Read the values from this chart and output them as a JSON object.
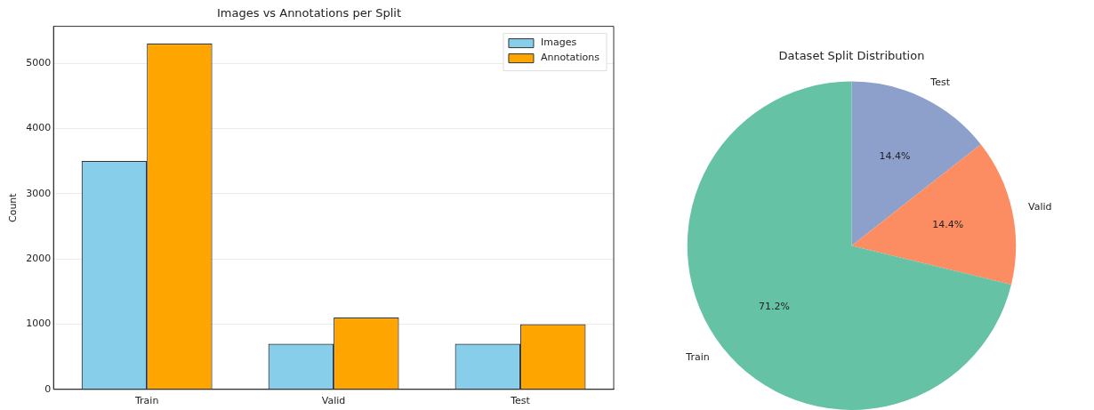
{
  "chart_data": [
    {
      "type": "bar",
      "title": "Images vs Annotations per Split",
      "ylabel": "Count",
      "categories": [
        "Train",
        "Valid",
        "Test"
      ],
      "series": [
        {
          "name": "Images",
          "color": "#87ceeb",
          "values": [
            3500,
            700,
            700
          ]
        },
        {
          "name": "Annotations",
          "color": "#ffa500",
          "values": [
            5300,
            1100,
            1000
          ]
        }
      ],
      "ylim": [
        0,
        5565
      ],
      "yticks": [
        0,
        1000,
        2000,
        3000,
        4000,
        5000
      ],
      "grid": "y",
      "legend": "top right"
    },
    {
      "type": "pie",
      "title": "Dataset Split Distribution",
      "categories": [
        "Test",
        "Valid",
        "Train"
      ],
      "values": [
        14.4,
        14.4,
        71.2
      ],
      "colors": [
        "#8da0cb",
        "#fc8d62",
        "#66c2a5"
      ],
      "value_labels": [
        "14.4%",
        "14.4%",
        "71.2%"
      ]
    }
  ]
}
